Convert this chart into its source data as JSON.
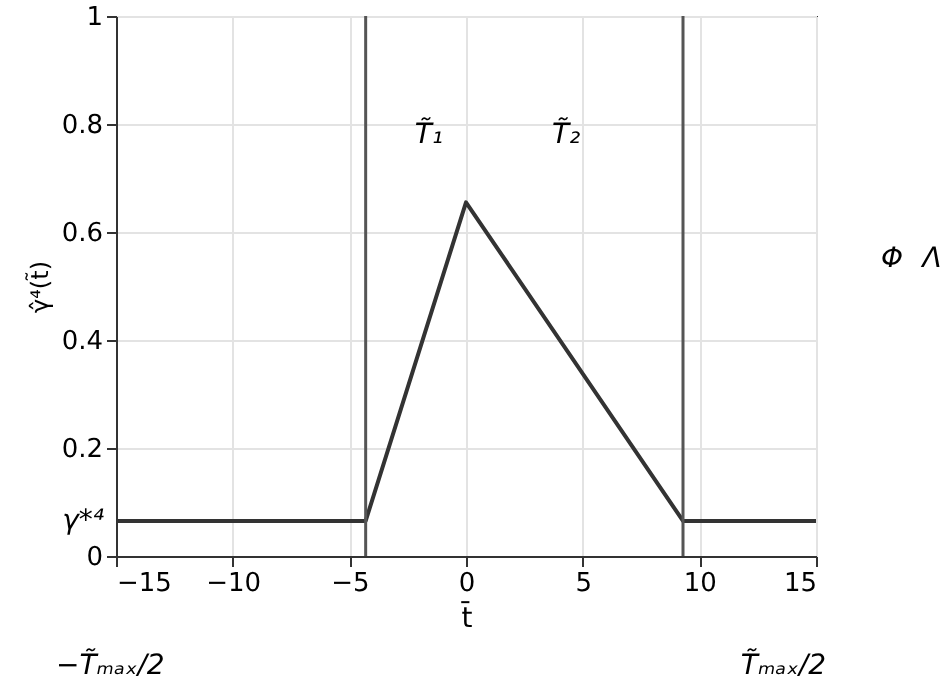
{
  "chart_data": {
    "type": "line",
    "xlabel": "t̄",
    "ylabel": "γ̂⁴(t̃)",
    "x": [
      -15,
      -4.3,
      0,
      9.3,
      15
    ],
    "series": [
      {
        "color": "#333333",
        "values": [
          0.065,
          0.065,
          0.655,
          0.065,
          0.065
        ]
      }
    ],
    "xlim": [
      -15,
      15
    ],
    "xticks": [
      -15,
      -10,
      -5,
      0,
      5,
      10,
      15
    ],
    "ylim": [
      0,
      1
    ],
    "yticks": [
      0,
      0.2,
      0.4,
      0.6,
      0.8,
      1
    ],
    "grid": true,
    "marker": "none",
    "line_style": "solid",
    "ref_lines": [
      {
        "axis": "x",
        "value": -4.3,
        "color": "#555555"
      },
      {
        "axis": "x",
        "value": 9.3,
        "color": "#555555"
      }
    ],
    "annotations": [
      "T̃₁",
      "T̃₂",
      {
        "text": "γ*⁴",
        "x": -15,
        "y": 0.065
      },
      "−T̃ₘₐₓ/2",
      "T̃ₘₐₓ/2",
      "Φ",
      "Λ"
    ]
  }
}
